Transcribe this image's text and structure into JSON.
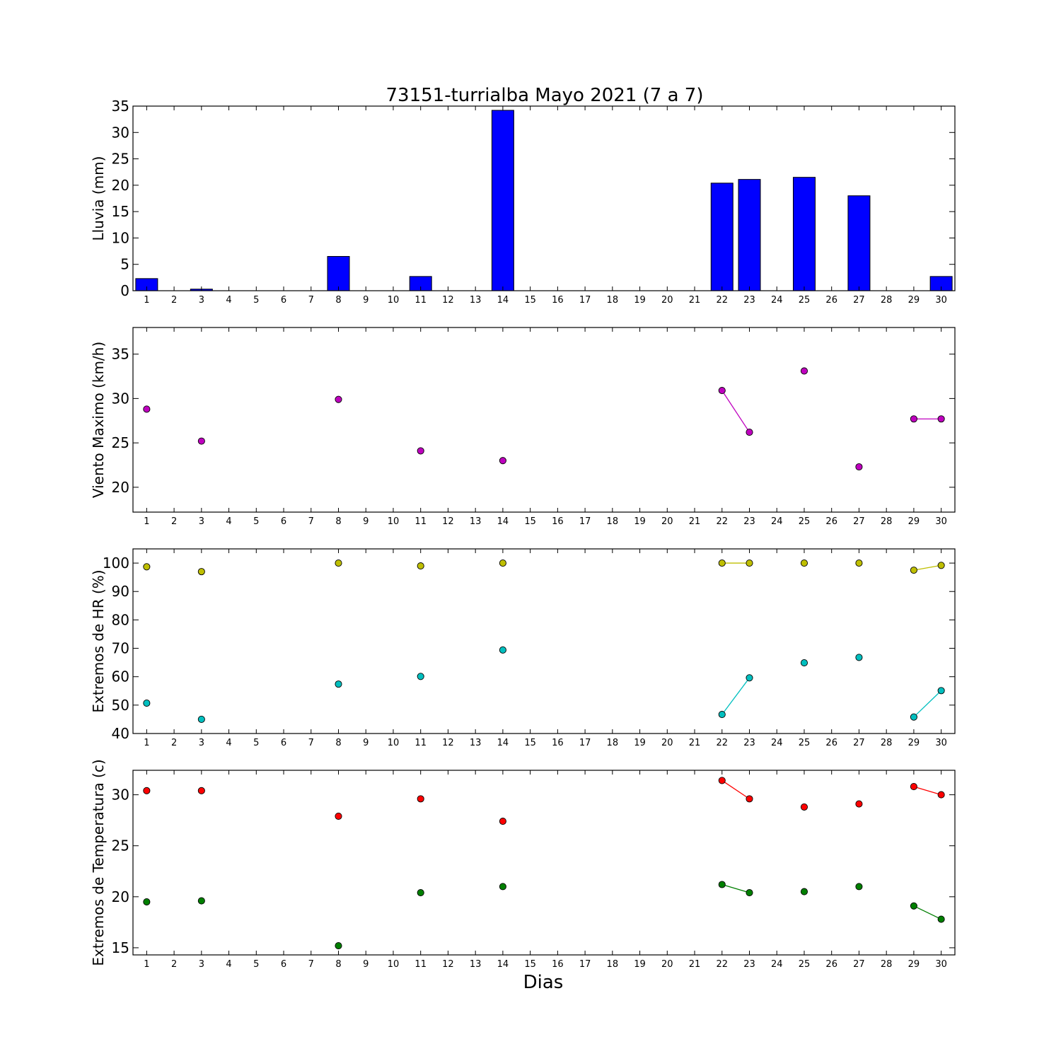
{
  "figure": {
    "title": "73151-turrialba Mayo 2021  (7 a 7)",
    "xlabel": "Dias"
  },
  "colors": {
    "bar": "#0000ff",
    "wind": "#bf00bf",
    "hr_max": "#bfbf00",
    "hr_min": "#00bfbf",
    "temp_max": "#ff0000",
    "temp_min": "#007f00"
  },
  "chart_data": [
    {
      "id": "lluvia",
      "type": "bar",
      "ylabel": "Lluvia (mm)",
      "xlim": [
        0.5,
        30.5
      ],
      "ylim": [
        0,
        35
      ],
      "yticks": [
        0,
        5,
        10,
        15,
        20,
        25,
        30,
        35
      ],
      "xticks": [
        1,
        2,
        3,
        4,
        5,
        6,
        7,
        8,
        9,
        10,
        11,
        12,
        13,
        14,
        15,
        16,
        17,
        18,
        19,
        20,
        21,
        22,
        23,
        24,
        25,
        26,
        27,
        28,
        29,
        30
      ],
      "series": [
        {
          "color": "#0000ff",
          "x": [
            1,
            3,
            8,
            11,
            14,
            22,
            23,
            25,
            27,
            30
          ],
          "values": [
            2.3,
            0.3,
            6.5,
            2.7,
            34.2,
            20.4,
            21.1,
            21.5,
            18.0,
            2.7
          ]
        }
      ]
    },
    {
      "id": "viento",
      "type": "line",
      "ylabel": "Viento Maximo (km/h)",
      "xlim": [
        0.5,
        30.5
      ],
      "ylim": [
        17.2,
        38
      ],
      "yticks": [
        20,
        25,
        30,
        35
      ],
      "xticks": [
        1,
        2,
        3,
        4,
        5,
        6,
        7,
        8,
        9,
        10,
        11,
        12,
        13,
        14,
        15,
        16,
        17,
        18,
        19,
        20,
        21,
        22,
        23,
        24,
        25,
        26,
        27,
        28,
        29,
        30
      ],
      "series": [
        {
          "color": "#bf00bf",
          "x": [
            1,
            3,
            8,
            11,
            14,
            22,
            23,
            25,
            27,
            29,
            30
          ],
          "values": [
            28.8,
            25.2,
            29.9,
            24.1,
            23.0,
            30.9,
            26.2,
            33.1,
            22.3,
            27.7,
            27.7
          ]
        }
      ]
    },
    {
      "id": "hr",
      "type": "line",
      "ylabel": "Extremos de HR (%)",
      "xlim": [
        0.5,
        30.5
      ],
      "ylim": [
        40,
        105
      ],
      "yticks": [
        40,
        50,
        60,
        70,
        80,
        90,
        100
      ],
      "xticks": [
        1,
        2,
        3,
        4,
        5,
        6,
        7,
        8,
        9,
        10,
        11,
        12,
        13,
        14,
        15,
        16,
        17,
        18,
        19,
        20,
        21,
        22,
        23,
        24,
        25,
        26,
        27,
        28,
        29,
        30
      ],
      "series": [
        {
          "color": "#bfbf00",
          "x": [
            1,
            3,
            8,
            11,
            14,
            22,
            23,
            25,
            27,
            29,
            30
          ],
          "values": [
            98.7,
            97.0,
            100,
            99.0,
            100,
            100,
            100,
            100,
            100,
            97.5,
            99.2
          ]
        },
        {
          "color": "#00bfbf",
          "x": [
            1,
            3,
            8,
            11,
            14,
            22,
            23,
            25,
            27,
            29,
            30
          ],
          "values": [
            50.7,
            45.0,
            57.4,
            60.1,
            69.4,
            46.7,
            59.6,
            64.9,
            66.8,
            45.8,
            55.1
          ]
        }
      ]
    },
    {
      "id": "temperatura",
      "type": "line",
      "ylabel": "Extremos de Temperatura (c)",
      "xlim": [
        0.5,
        30.5
      ],
      "ylim": [
        14.3,
        32.4
      ],
      "yticks": [
        15,
        20,
        25,
        30
      ],
      "xticks": [
        1,
        2,
        3,
        4,
        5,
        6,
        7,
        8,
        9,
        10,
        11,
        12,
        13,
        14,
        15,
        16,
        17,
        18,
        19,
        20,
        21,
        22,
        23,
        24,
        25,
        26,
        27,
        28,
        29,
        30
      ],
      "series": [
        {
          "color": "#ff0000",
          "x": [
            1,
            3,
            8,
            11,
            14,
            22,
            23,
            25,
            27,
            29,
            30
          ],
          "values": [
            30.4,
            30.4,
            27.9,
            29.6,
            27.4,
            31.4,
            29.6,
            28.8,
            29.1,
            30.8,
            30.0
          ]
        },
        {
          "color": "#007f00",
          "x": [
            1,
            3,
            8,
            11,
            14,
            22,
            23,
            25,
            27,
            29,
            30
          ],
          "values": [
            19.5,
            19.6,
            15.2,
            20.4,
            21.0,
            21.2,
            20.4,
            20.5,
            21.0,
            19.1,
            17.8
          ]
        }
      ]
    }
  ]
}
